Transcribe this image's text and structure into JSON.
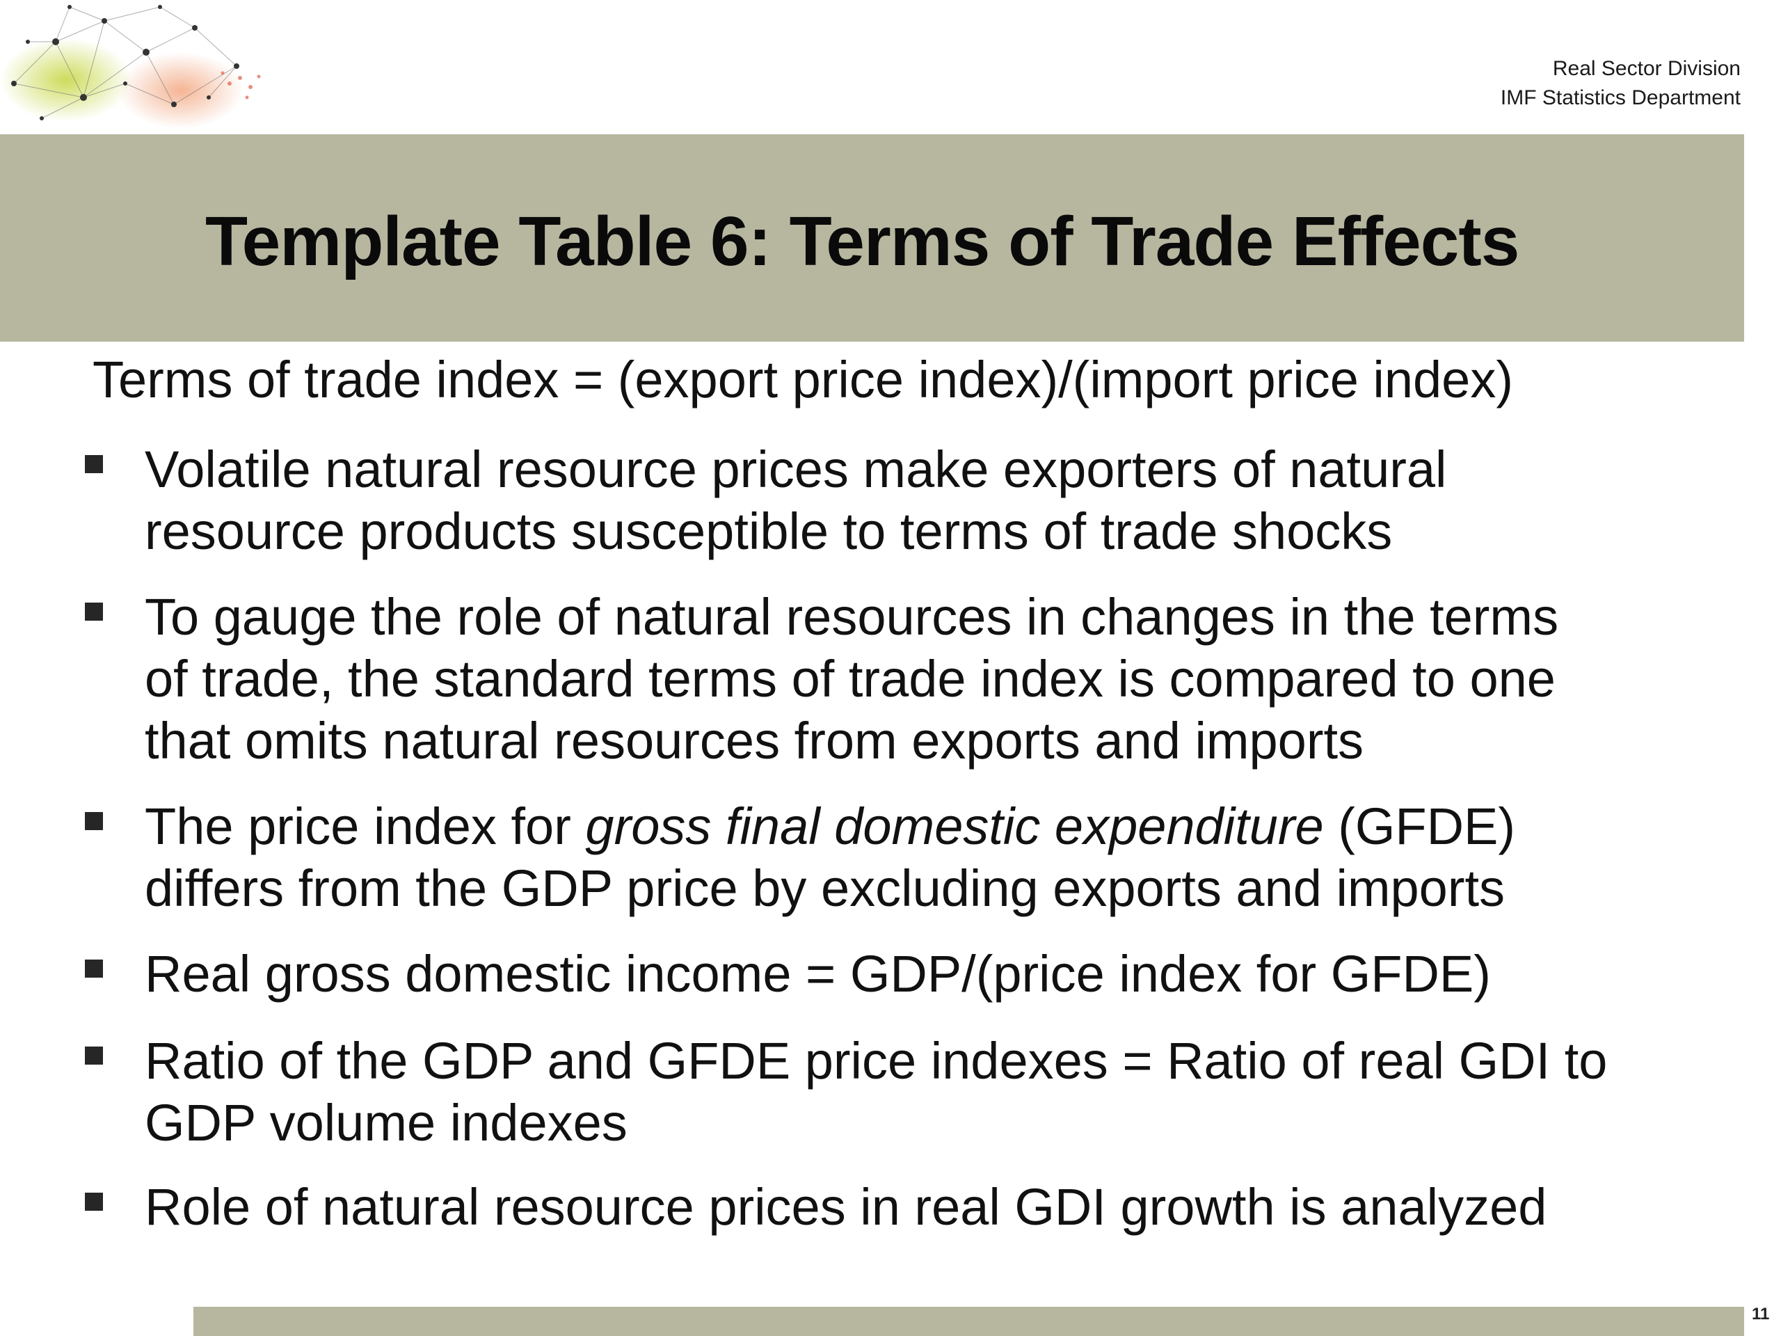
{
  "header": {
    "division": "Real Sector Division",
    "department": "IMF Statistics Department"
  },
  "slide": {
    "title": "Template Table 6: Terms of Trade Effects",
    "formula": "Terms of trade index = (export price index)/(import price index)",
    "bullets": [
      {
        "lines": [
          "Volatile natural resource prices make exporters of natural",
          "resource products susceptible to terms of trade shocks"
        ]
      },
      {
        "lines": [
          "To gauge the role of natural resources in changes in the terms",
          "of trade, the standard terms of trade index is compared to one",
          "that omits natural resources from exports and imports"
        ]
      },
      {
        "line1_prefix": "The price index for ",
        "line1_italic": "gross final domestic expenditure",
        "line1_suffix": " (GFDE)",
        "line2": "differs from the GDP price by excluding exports and imports"
      },
      {
        "lines": [
          "Real gross domestic income = GDP/(price index for GFDE)"
        ]
      },
      {
        "lines": [
          "Ratio of the GDP and GFDE price indexes = Ratio of real GDI to",
          "GDP volume indexes"
        ]
      },
      {
        "lines": [
          "Role of natural resource prices in real GDI growth is analyzed"
        ]
      }
    ],
    "page_number": "11"
  },
  "colors": {
    "band": "#b7b7a0",
    "text": "#111111",
    "bullet_marker": "#262626"
  }
}
